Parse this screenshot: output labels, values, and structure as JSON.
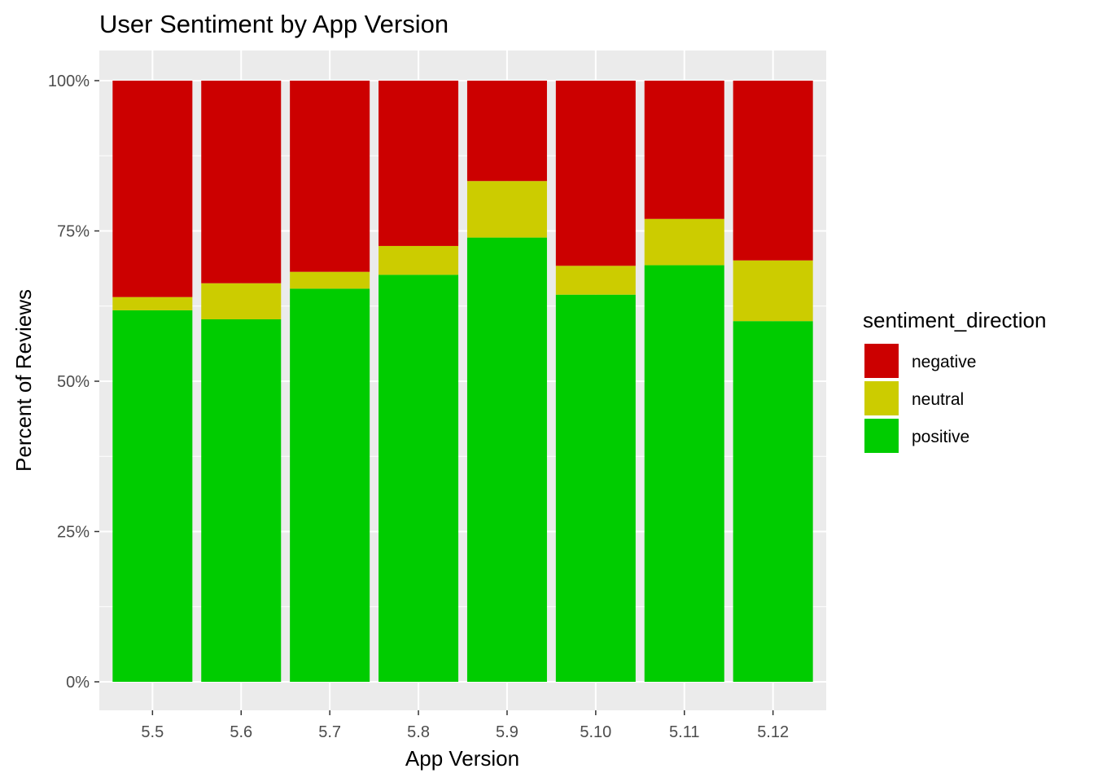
{
  "chart_data": {
    "type": "bar",
    "stacked": true,
    "title": "User Sentiment by App Version",
    "xlabel": "App Version",
    "ylabel": "Percent of Reviews",
    "ylim": [
      0,
      1
    ],
    "y_tick_values": [
      0,
      0.25,
      0.5,
      0.75,
      1.0
    ],
    "y_tick_labels": [
      "0%",
      "25%",
      "50%",
      "75%",
      "100%"
    ],
    "categories": [
      "5.5",
      "5.6",
      "5.7",
      "5.8",
      "5.9",
      "5.10",
      "5.11",
      "5.12"
    ],
    "series": [
      {
        "name": "positive",
        "color": "#00cc00",
        "values": [
          0.618,
          0.603,
          0.654,
          0.677,
          0.739,
          0.644,
          0.693,
          0.6
        ]
      },
      {
        "name": "neutral",
        "color": "#cccc00",
        "values": [
          0.022,
          0.06,
          0.028,
          0.048,
          0.094,
          0.048,
          0.077,
          0.101
        ]
      },
      {
        "name": "negative",
        "color": "#cc0000",
        "values": [
          0.36,
          0.337,
          0.318,
          0.275,
          0.167,
          0.308,
          0.23,
          0.299
        ]
      }
    ],
    "legend": {
      "title": "sentiment_direction",
      "position": "right",
      "order": [
        "negative",
        "neutral",
        "positive"
      ]
    },
    "grid": true,
    "panel_background": "#ebebeb",
    "grid_color": "#ffffff"
  }
}
